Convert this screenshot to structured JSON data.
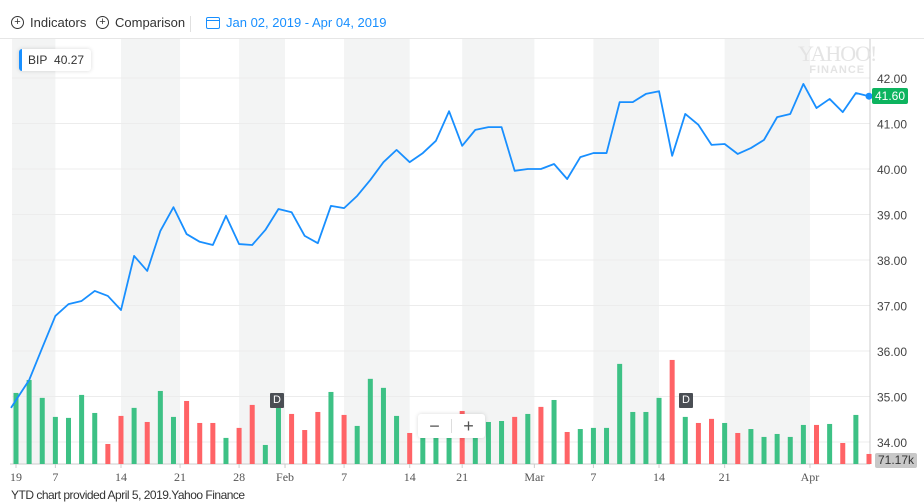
{
  "toolbar": {
    "indicators": "Indicators",
    "comparison": "Comparison",
    "date_range": "Jan 02, 2019 - Apr 04, 2019"
  },
  "legend": {
    "symbol": "BIP",
    "value": "40.27"
  },
  "watermark": {
    "line1": "YAHOO!",
    "line2": "FINANCE"
  },
  "price_label": "41.60",
  "volume_label": "71.17k",
  "zoom": {
    "minus": "−",
    "plus": "+"
  },
  "dividend_marker": "D",
  "footer": "YTD chart provided April 5, 2019.Yahoo Finance",
  "colors": {
    "line": "#188fff",
    "up": "#3dc185",
    "down": "#ff6366",
    "band": "#f3f4f4"
  },
  "chart_data": {
    "type": "line",
    "title": "BIP",
    "y_ticks": [
      "42.00",
      "41.00",
      "40.00",
      "39.00",
      "38.00",
      "37.00",
      "36.00",
      "35.00",
      "34.00"
    ],
    "ylim": [
      33.8,
      42.8
    ],
    "x_ticks": [
      {
        "label": "19",
        "index": 0
      },
      {
        "label": "7",
        "index": 3
      },
      {
        "label": "14",
        "index": 8
      },
      {
        "label": "21",
        "index": 12.5
      },
      {
        "label": "28",
        "index": 17
      },
      {
        "label": "Feb",
        "index": 20.5
      },
      {
        "label": "7",
        "index": 25
      },
      {
        "label": "14",
        "index": 30
      },
      {
        "label": "21",
        "index": 34
      },
      {
        "label": "Mar",
        "index": 39.5
      },
      {
        "label": "7",
        "index": 44
      },
      {
        "label": "14",
        "index": 49
      },
      {
        "label": "21",
        "index": 54
      },
      {
        "label": "Apr",
        "index": 60.5
      }
    ],
    "close": [
      34.92,
      35.36,
      36.07,
      36.77,
      37.03,
      37.1,
      37.32,
      37.21,
      36.9,
      38.09,
      37.76,
      38.64,
      39.16,
      38.57,
      38.4,
      38.33,
      38.97,
      38.35,
      38.33,
      38.66,
      39.12,
      39.05,
      38.53,
      38.37,
      39.19,
      39.14,
      39.41,
      39.76,
      40.15,
      40.42,
      40.15,
      40.35,
      40.62,
      41.27,
      40.51,
      40.86,
      40.92,
      40.92,
      39.96,
      40.0,
      40.0,
      40.11,
      39.78,
      40.26,
      40.35,
      40.35,
      41.47,
      41.47,
      41.65,
      41.71,
      40.29,
      41.21,
      40.97,
      40.53,
      40.55,
      40.33,
      40.46,
      40.64,
      41.14,
      41.21,
      41.87,
      41.34,
      41.54,
      41.25,
      41.67,
      41.6
    ],
    "volume_k": [
      504,
      596,
      469,
      334,
      327,
      490,
      362,
      142,
      341,
      398,
      298,
      518,
      334,
      447,
      291,
      291,
      185,
      256,
      419,
      135,
      398,
      355,
      241,
      369,
      511,
      348,
      270,
      604,
      540,
      341,
      220,
      185,
      185,
      185,
      376,
      185,
      298,
      305,
      334,
      355,
      405,
      454,
      227,
      248,
      256,
      256,
      710,
      369,
      369,
      469,
      738,
      334,
      291,
      320,
      291,
      220,
      248,
      192,
      213,
      192,
      277,
      277,
      284,
      149,
      348,
      71.17
    ],
    "volume_direction": [
      "up",
      "up",
      "up",
      "up",
      "up",
      "up",
      "up",
      "down",
      "down",
      "up",
      "down",
      "up",
      "up",
      "down",
      "down",
      "down",
      "up",
      "down",
      "down",
      "up",
      "up",
      "down",
      "down",
      "down",
      "up",
      "down",
      "up",
      "up",
      "up",
      "up",
      "down",
      "up",
      "up",
      "up",
      "down",
      "up",
      "up",
      "up",
      "down",
      "up",
      "down",
      "up",
      "down",
      "up",
      "up",
      "up",
      "up",
      "up",
      "up",
      "up",
      "down",
      "up",
      "down",
      "down",
      "up",
      "down",
      "up",
      "up",
      "up",
      "up",
      "up",
      "down",
      "up",
      "down",
      "up",
      "down"
    ],
    "dividends_at_index": [
      20,
      51
    ]
  }
}
